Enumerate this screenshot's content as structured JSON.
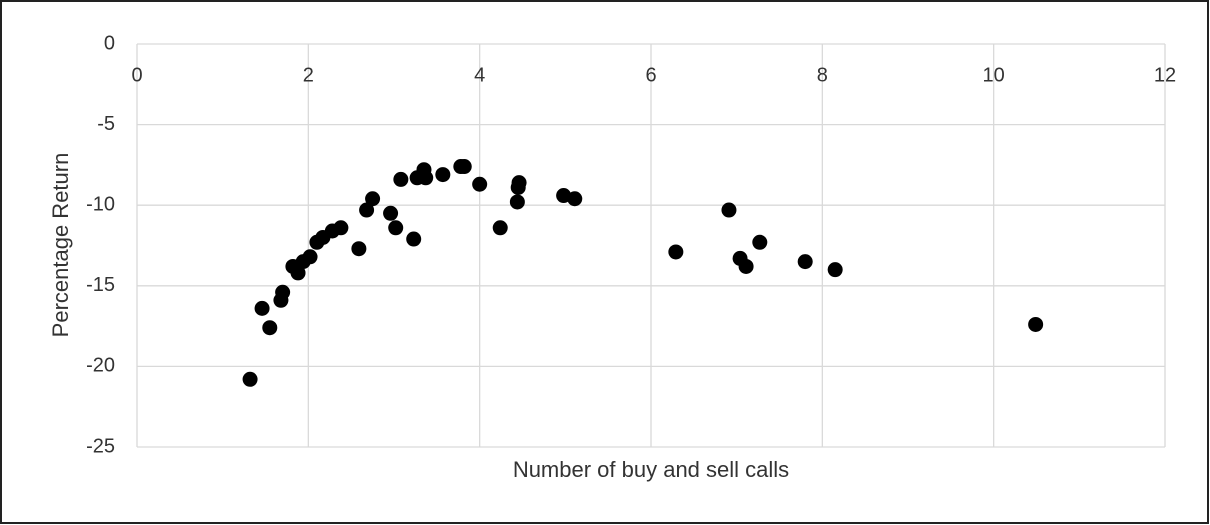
{
  "chart_data": {
    "type": "scatter",
    "x_label": "Number of buy and sell calls",
    "y_label": "Percentage Return",
    "x": [
      1.32,
      1.46,
      1.55,
      1.68,
      1.7,
      1.82,
      1.88,
      1.94,
      2.02,
      2.1,
      2.17,
      2.28,
      2.38,
      2.59,
      2.68,
      2.75,
      2.96,
      3.02,
      3.08,
      3.23,
      3.27,
      3.35,
      3.37,
      3.57,
      3.78,
      3.82,
      4.0,
      4.24,
      4.44,
      4.45,
      4.46,
      4.98,
      5.11,
      6.29,
      6.91,
      7.04,
      7.11,
      7.27,
      7.8,
      8.15,
      10.49
    ],
    "values": [
      -20.8,
      -16.4,
      -17.6,
      -15.9,
      -15.4,
      -13.8,
      -14.2,
      -13.5,
      -13.2,
      -12.3,
      -12.0,
      -11.6,
      -11.4,
      -12.7,
      -10.3,
      -9.6,
      -10.5,
      -11.4,
      -8.4,
      -12.1,
      -8.3,
      -7.8,
      -8.3,
      -8.1,
      -7.6,
      -7.6,
      -8.7,
      -11.4,
      -9.8,
      -8.9,
      -8.6,
      -9.4,
      -9.6,
      -12.9,
      -10.3,
      -13.3,
      -13.8,
      -12.3,
      -13.5,
      -14.0,
      -17.4
    ],
    "color": "#000000",
    "xlim": [
      0,
      12
    ],
    "xticks": [
      0,
      2,
      4,
      6,
      8,
      10,
      12
    ],
    "ylim": [
      -25,
      0
    ],
    "yticks": [
      -25,
      -20,
      -15,
      -10,
      -5,
      0
    ],
    "grid": true
  }
}
